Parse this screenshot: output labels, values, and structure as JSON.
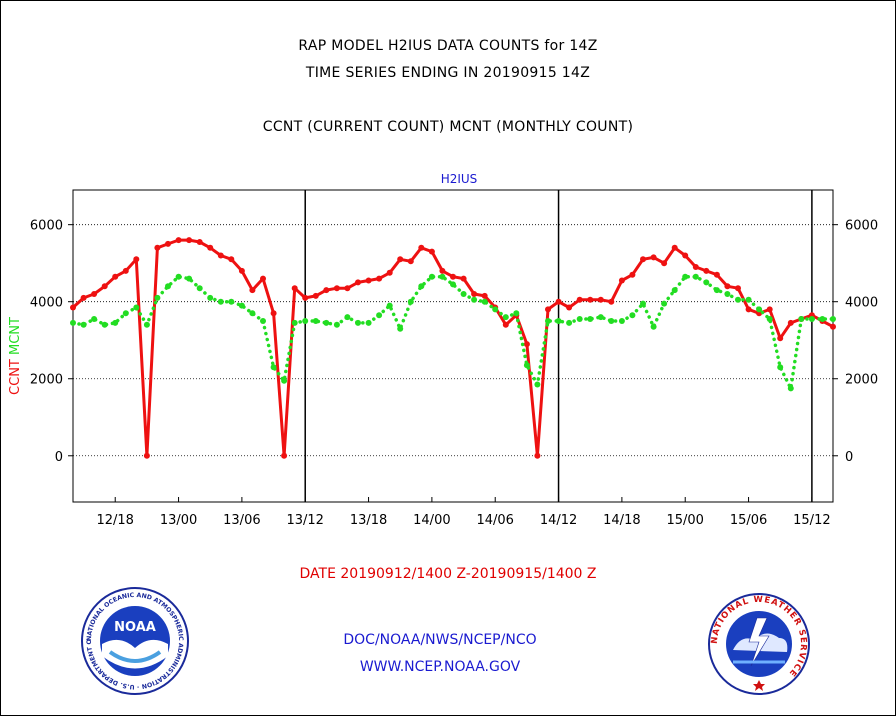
{
  "header": {
    "line1": "RAP MODEL H2IUS DATA COUNTS for 14Z",
    "line2": "TIME SERIES ENDING IN 20190915 14Z",
    "line3": "CCNT (CURRENT COUNT) MCNT (MONTHLY COUNT)"
  },
  "footer": {
    "date_range": "DATE 20190912/1400 Z-20190915/1400 Z",
    "org": "DOC/NOAA/NWS/NCEP/NCO",
    "site": "WWW.NCEP.NOAA.GOV"
  },
  "logos": {
    "noaa_text": "NOAA",
    "noaa_ring": "NATIONAL OCEANIC AND ATMOSPHERIC ADMINISTRATION · U.S. DEPARTMENT OF COMMERCE",
    "nws_ring": "NATIONAL WEATHER SERVICE"
  },
  "colors": {
    "ccnt": "#ee1111",
    "mcnt": "#22dd22",
    "title": "#1a1ad0",
    "grid": "#000000"
  },
  "chart_data": {
    "type": "line",
    "title": "H2IUS",
    "ylabel_left": [
      "CCNT",
      "MCNT"
    ],
    "y_ticks": [
      0,
      2000,
      4000,
      6000
    ],
    "ylim": [
      -1200,
      6900
    ],
    "x_tick_labels": [
      "12/18",
      "13/00",
      "13/06",
      "13/12",
      "13/18",
      "14/00",
      "14/06",
      "14/12",
      "14/18",
      "15/00",
      "15/06",
      "15/12"
    ],
    "x_tick_hours": [
      4,
      10,
      16,
      22,
      28,
      34,
      40,
      46,
      52,
      58,
      64,
      70
    ],
    "x_range_hours": [
      0,
      72
    ],
    "day_boundaries_hours": [
      22,
      46,
      70
    ],
    "grid": "horizontal",
    "series": [
      {
        "name": "CCNT",
        "color": "#ee1111",
        "style": "solid",
        "x": [
          0,
          1,
          2,
          3,
          4,
          5,
          6,
          7,
          8,
          9,
          10,
          11,
          12,
          13,
          14,
          15,
          16,
          17,
          18,
          19,
          20,
          21,
          22,
          23,
          24,
          25,
          26,
          27,
          28,
          29,
          30,
          31,
          32,
          33,
          34,
          35,
          36,
          37,
          38,
          39,
          40,
          41,
          42,
          43,
          44,
          45,
          46,
          47,
          48,
          49,
          50,
          51,
          52,
          53,
          54,
          55,
          56,
          57,
          58,
          59,
          60,
          61,
          62,
          63,
          64,
          65,
          66,
          67,
          68,
          69,
          70,
          71,
          72
        ],
        "values": [
          3850,
          4100,
          4200,
          4400,
          4650,
          4800,
          5100,
          0,
          5400,
          5500,
          5600,
          5600,
          5550,
          5400,
          5200,
          5100,
          4800,
          4300,
          4600,
          3700,
          0,
          4350,
          4100,
          4150,
          4300,
          4350,
          4350,
          4500,
          4550,
          4600,
          4750,
          5100,
          5050,
          5400,
          5300,
          4800,
          4650,
          4600,
          4200,
          4150,
          3850,
          3400,
          3650,
          2900,
          0,
          3800,
          4000,
          3850,
          4050,
          4050,
          4050,
          4000,
          4550,
          4700,
          5100,
          5150,
          5000,
          5400,
          5200,
          4900,
          4800,
          4700,
          4400,
          4350,
          3800,
          3700,
          3800,
          3050,
          3450,
          3550,
          3650,
          3500,
          3350
        ]
      },
      {
        "name": "MCNT",
        "color": "#22dd22",
        "style": "dotted",
        "x": [
          0,
          1,
          2,
          3,
          4,
          5,
          6,
          7,
          8,
          9,
          10,
          11,
          12,
          13,
          14,
          15,
          16,
          17,
          18,
          19,
          20,
          21,
          22,
          23,
          24,
          25,
          26,
          27,
          28,
          29,
          30,
          31,
          32,
          33,
          34,
          35,
          36,
          37,
          38,
          39,
          40,
          41,
          42,
          43,
          44,
          45,
          46,
          47,
          48,
          49,
          50,
          51,
          52,
          53,
          54,
          55,
          56,
          57,
          58,
          59,
          60,
          61,
          62,
          63,
          64,
          65,
          66,
          67,
          68,
          69,
          70,
          71,
          72
        ],
        "values": [
          3450,
          3400,
          3550,
          3400,
          3450,
          3700,
          3850,
          3400,
          4100,
          4400,
          4650,
          4600,
          4350,
          4100,
          4000,
          4000,
          3900,
          3700,
          3500,
          2300,
          1950,
          3450,
          3500,
          3500,
          3450,
          3400,
          3600,
          3450,
          3450,
          3650,
          3900,
          3300,
          4000,
          4400,
          4650,
          4650,
          4450,
          4200,
          4050,
          4000,
          3800,
          3600,
          3700,
          2350,
          1850,
          3500,
          3500,
          3450,
          3550,
          3550,
          3600,
          3500,
          3500,
          3650,
          3950,
          3350,
          3950,
          4300,
          4650,
          4650,
          4500,
          4300,
          4200,
          4050,
          4050,
          3800,
          3550,
          2300,
          1750,
          3550,
          3550,
          3550,
          3550
        ]
      }
    ]
  }
}
